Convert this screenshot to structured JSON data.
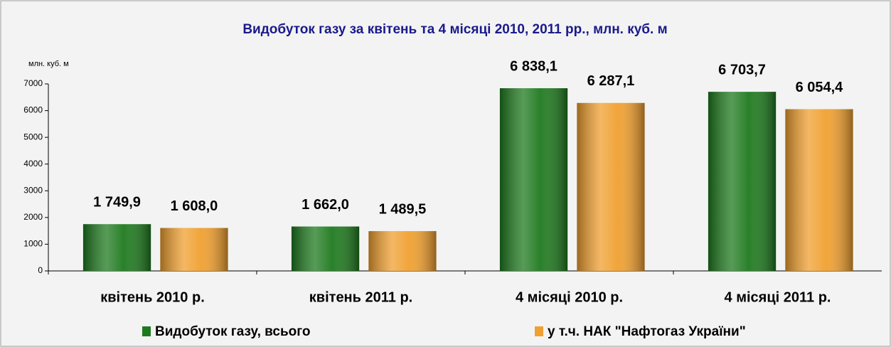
{
  "chart_data": {
    "type": "bar",
    "title": "Видобуток газу за квітень та 4 місяці 2010, 2011 рр.,  млн. куб. м",
    "y_label": "млн. куб. м",
    "categories": [
      "квітень 2010 р.",
      "квітень 2011 р.",
      "4 місяці 2010 р.",
      "4 місяці 2011 р."
    ],
    "series": [
      {
        "name": "Видобуток газу, всього",
        "color": "#1f7a1f",
        "values": [
          1749.9,
          1662.0,
          6838.1,
          6703.7
        ],
        "value_labels": [
          "1 749,9",
          "1 662,0",
          "6 838,1",
          "6 703,7"
        ]
      },
      {
        "name": "у т.ч. НАК \"Нафтогаз України\"",
        "color": "#f0a030",
        "values": [
          1608.0,
          1489.5,
          6287.1,
          6054.4
        ],
        "value_labels": [
          "1 608,0",
          "1 489,5",
          "6 287,1",
          "6 054,4"
        ]
      }
    ],
    "ylim": [
      0,
      7000
    ],
    "yticks": [
      0,
      1000,
      2000,
      3000,
      4000,
      5000,
      6000,
      7000
    ],
    "legend": "bottom"
  }
}
